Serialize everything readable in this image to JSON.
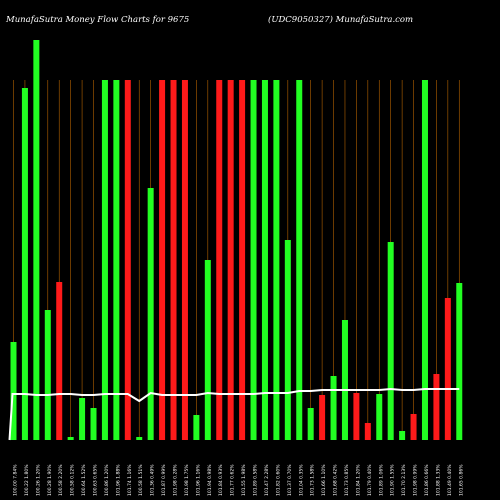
{
  "header": {
    "left_title": "MunafaSutra  Money Flow  Charts for 9675",
    "right_title": "(UDC9050327) MunafaSutra.com"
  },
  "colors": {
    "background": "#000000",
    "up": "#22ff22",
    "down": "#ff1a1a",
    "grid": "#ff8c00",
    "line": "#ffffff"
  },
  "chart_data": {
    "type": "bar",
    "title": "MunafaSutra  Money Flow  Charts for 9675",
    "categories": [
      "100.00 7.84%",
      "100.22 1.80%",
      "100.26 1.20%",
      "100.28 1.90%",
      "100.58 2.20%",
      "100.58 0.12%",
      "100.64 1.52%",
      "100.63 0.65%",
      "100.86 1.20%",
      "101.96 1.88%",
      "101.74 1.16%",
      "100.58 1.51%",
      "101.36 0.49%",
      "101.87 0.99%",
      "101.98 0.28%",
      "101.98 1.75%",
      "101.96 1.16%",
      "101.94 0.98%",
      "101.84 0.93%",
      "101.77 0.62%",
      "101.55 1.98%",
      "101.89 0.58%",
      "101.47 2.28%",
      "101.82 0.60%",
      "101.37 0.70%",
      "101.04 0.35%",
      "101.73 1.58%",
      "101.66 1.10%",
      "101.68 0.42%",
      "101.73 0.85%",
      "101.84 1.20%",
      "101.79 0.40%",
      "101.89 1.06%",
      "101.90 1.55%",
      "101.70 2.13%",
      "101.98 0.99%",
      "101.86 0.66%",
      "101.88 1.33%",
      "101.49 0.40%",
      "101.65 0.86%"
    ],
    "values": [
      98,
      352,
      400,
      130,
      158,
      3,
      42,
      32,
      360,
      360,
      360,
      3,
      252,
      360,
      360,
      360,
      25,
      180,
      360,
      360,
      360,
      360,
      360,
      360,
      200,
      360,
      32,
      45,
      64,
      120,
      47,
      17,
      46,
      198,
      9,
      26,
      360,
      66,
      142,
      157
    ],
    "directions": [
      "up",
      "up",
      "up",
      "up",
      "down",
      "up",
      "up",
      "up",
      "up",
      "up",
      "down",
      "up",
      "up",
      "down",
      "down",
      "down",
      "up",
      "up",
      "down",
      "down",
      "down",
      "up",
      "up",
      "up",
      "up",
      "up",
      "up",
      "down",
      "up",
      "up",
      "down",
      "down",
      "up",
      "up",
      "up",
      "down",
      "up",
      "down",
      "down",
      "up"
    ],
    "line": [
      46,
      46,
      45,
      45,
      46,
      46,
      45,
      45,
      46,
      46,
      46,
      39,
      47,
      45,
      45,
      45,
      45,
      47,
      46,
      46,
      46,
      46,
      47,
      47,
      47,
      49,
      49,
      50,
      50,
      50,
      50,
      50,
      50,
      51,
      50,
      50,
      51,
      51,
      51,
      51
    ],
    "line_start": 0,
    "ylim": [
      0,
      400
    ],
    "grid": true,
    "xlabel": "",
    "ylabel": ""
  }
}
